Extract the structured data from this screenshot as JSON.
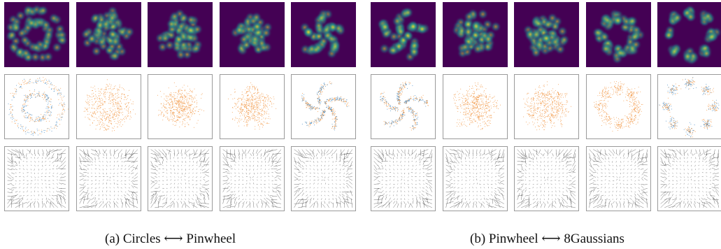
{
  "captions": {
    "a": "(a) Circles ⟷ Pinwheel",
    "b": "(b) Pinwheel ⟷ 8Gaussians"
  },
  "panels": {
    "a": {
      "from": "Circles",
      "to": "Pinwheel"
    },
    "b": {
      "from": "Pinwheel",
      "to": "8Gaussians"
    }
  },
  "rows": [
    "density",
    "samples",
    "vector-field"
  ],
  "colors": {
    "density_background": "#440154",
    "density_mid": "#21918c",
    "density_peak": "#fde725",
    "samples_blue": "#4c8fc7",
    "samples_orange": "#f29a4a",
    "arrows": "#222222",
    "tile_border": "#9a9a9a"
  },
  "columns_per_panel": 5
}
